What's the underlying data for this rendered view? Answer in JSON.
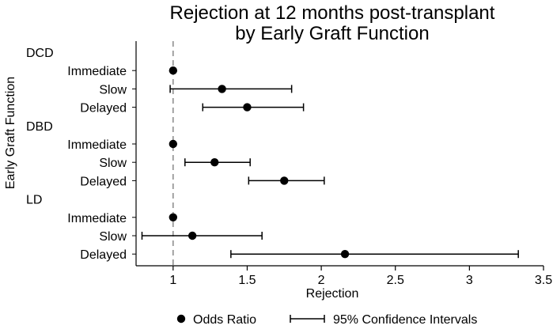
{
  "chart_data": {
    "type": "scatter",
    "title": "Rejection at 12 months post-transplant",
    "subtitle": "by Early Graft Function",
    "xlabel": "Rejection",
    "ylabel": "Early Graft Function",
    "xlim": [
      0.75,
      3.5
    ],
    "x_ticks": [
      1,
      1.5,
      2,
      2.5,
      3,
      3.5
    ],
    "x_tick_labels": [
      "1",
      "1.5",
      "2",
      "2.5",
      "3",
      "3.5"
    ],
    "reference_line": 1,
    "legend_position": "bottom",
    "legend": [
      {
        "label": "Odds Ratio",
        "marker": "dot"
      },
      {
        "label": "95% Confidence Intervals",
        "marker": "capped-line"
      }
    ],
    "groups": [
      {
        "name": "DCD",
        "rows": [
          {
            "label": "Immediate",
            "or": 1.0,
            "ci": null
          },
          {
            "label": "Slow",
            "or": 1.33,
            "ci": [
              0.98,
              1.8
            ]
          },
          {
            "label": "Delayed",
            "or": 1.5,
            "ci": [
              1.2,
              1.88
            ]
          }
        ]
      },
      {
        "name": "DBD",
        "rows": [
          {
            "label": "Immediate",
            "or": 1.0,
            "ci": null
          },
          {
            "label": "Slow",
            "or": 1.28,
            "ci": [
              1.08,
              1.52
            ]
          },
          {
            "label": "Delayed",
            "or": 1.75,
            "ci": [
              1.51,
              2.02
            ]
          }
        ]
      },
      {
        "name": "LD",
        "rows": [
          {
            "label": "Immediate",
            "or": 1.0,
            "ci": null
          },
          {
            "label": "Slow",
            "or": 1.13,
            "ci": [
              0.79,
              1.6
            ]
          },
          {
            "label": "Delayed",
            "or": 2.16,
            "ci": [
              1.39,
              3.33
            ]
          }
        ]
      }
    ],
    "colors": {
      "marker": "#000000",
      "reference_line": "#888888",
      "axis": "#000000"
    }
  }
}
